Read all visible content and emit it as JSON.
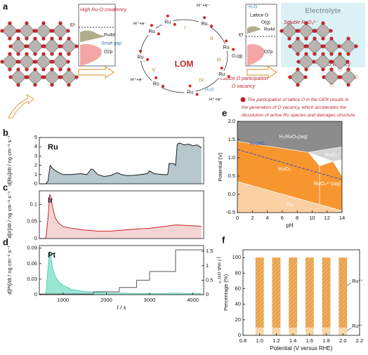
{
  "diagram": {
    "panel": "a",
    "left_dos": {
      "title": "High Ru-O covalency",
      "fermi": "Ef",
      "upper": "Ru4d",
      "gap": "Small gap",
      "lower": "O2p"
    },
    "cycle": {
      "name": "LOM",
      "steps": [
        "I",
        "II",
        "III",
        "IV",
        "V"
      ],
      "sites": [
        "Ru",
        "Ru",
        "Ru",
        "Ru",
        "Ru",
        "Ru",
        "Ru",
        "Ru"
      ],
      "protons": [
        "H⁺+e⁻",
        "H⁺+e⁻",
        "H⁺+e⁻",
        "H⁺+e⁻"
      ],
      "waters": [
        "H₂O",
        "H₂O"
      ],
      "gas": "O₂(g)",
      "lattice_o": "Lattice O participation",
      "vacancy": "O vacancy"
    },
    "right_dos": {
      "fermi": "Ef",
      "upper": "Ru4d",
      "lower": "O2p",
      "water": "H₂O",
      "lattice": "Lattice O",
      "gas": "O(g)"
    },
    "electrolyte": {
      "title": "Electrolyte",
      "soluble": "Soluble RuO₄²⁻",
      "vacancy": "O vacancy"
    },
    "caption": [
      "The participation of lattice O in the OER results in",
      "the generation of O vacancy, which accelerates the",
      "dissolution of active Ru species and damages structure"
    ]
  },
  "chart_data": [
    {
      "type": "area",
      "panel": "b",
      "label": "Ru",
      "ylabel": "d[Ru]/dt / ng cm⁻² s⁻¹",
      "color": "#a9bdc6",
      "line_color": "#1c1c1c",
      "x": [
        450,
        600,
        650,
        700,
        750,
        800,
        900,
        1000,
        1200,
        1400,
        1550,
        1650,
        1700,
        1800,
        1950,
        2100,
        2250,
        2350,
        2450,
        2600,
        2800,
        2950,
        3000,
        3100,
        3300,
        3420,
        3450,
        3550,
        3600,
        3640,
        3700,
        3800,
        3900,
        4000,
        4100,
        4200
      ],
      "values": [
        0,
        0,
        0.3,
        2.0,
        1.7,
        1.5,
        1.2,
        1.0,
        1.0,
        1.1,
        1.0,
        1.6,
        1.5,
        1.0,
        0.8,
        0.9,
        1.2,
        1.0,
        0.9,
        0.9,
        1.0,
        1.1,
        1.4,
        1.1,
        1.0,
        1.0,
        2.2,
        2.2,
        2.0,
        4.3,
        4.4,
        4.2,
        4.3,
        4.1,
        4.2,
        3.9
      ],
      "xlim": [
        450,
        4250
      ],
      "ylim": [
        0,
        5
      ],
      "yticks": [
        0,
        1,
        2,
        3,
        4,
        5
      ]
    },
    {
      "type": "area",
      "panel": "c",
      "label": "Ir",
      "ylabel": "d[Ir]/dt / ng cm⁻² s⁻¹",
      "color": "#f3cccc",
      "line_color": "#c62828",
      "x": [
        450,
        600,
        650,
        690,
        720,
        760,
        820,
        900,
        1000,
        1200,
        1500,
        1800,
        2100,
        2400,
        2700,
        3000,
        3300,
        3600,
        3900,
        4200
      ],
      "values": [
        0,
        0,
        0.06,
        0.13,
        0.12,
        0.09,
        0.06,
        0.045,
        0.035,
        0.03,
        0.025,
        0.022,
        0.022,
        0.025,
        0.028,
        0.03,
        0.035,
        0.04,
        0.038,
        0.036
      ],
      "xlim": [
        450,
        4250
      ],
      "ylim": [
        0,
        0.14
      ],
      "yticks": [
        0,
        0.05,
        0.1
      ]
    },
    {
      "type": "area",
      "panel": "d",
      "label": "Pt",
      "ylabel": "d[Pt]/dt / ng cm⁻² s⁻¹",
      "xlabel": "t / s",
      "y2label": "j / mA cm⁻²",
      "color": "#86e3cc",
      "line_color": "#5fcfb3",
      "x": [
        450,
        600,
        650,
        690,
        720,
        760,
        820,
        900,
        1000,
        1200,
        1500,
        1800,
        2100,
        2400,
        2700,
        3000,
        3300,
        3600,
        3900,
        4200
      ],
      "values": [
        0,
        0,
        0.05,
        0.085,
        0.07,
        0.05,
        0.035,
        0.025,
        0.018,
        0.01,
        0.006,
        0.004,
        0.003,
        0.003,
        0.002,
        0.002,
        0.002,
        0.003,
        0.002,
        0.002
      ],
      "current": {
        "axis": "y2",
        "color": "#555555",
        "x": [
          450,
          1700,
          2300,
          2700,
          3000,
          3600
        ],
        "values": [
          0.02,
          0.1,
          0.25,
          0.5,
          0.8,
          1.55
        ]
      },
      "xlim": [
        450,
        4250
      ],
      "xticks": [
        1000,
        2000,
        3000,
        4000
      ],
      "ylim": [
        0,
        0.095
      ],
      "yticks": [
        0,
        0.03,
        0.06,
        0.09
      ],
      "y2lim": [
        0,
        1.7
      ],
      "y2ticks": [
        0,
        0.5,
        1,
        1.5
      ]
    },
    {
      "type": "region",
      "panel": "e",
      "xlabel": "pH",
      "ylabel": "Potential (V)",
      "regions": [
        {
          "name": "H₂RuO₅(aq)",
          "color": "#8c8c8c",
          "points": [
            [
              0,
              2.0
            ],
            [
              14,
              2.0
            ],
            [
              14,
              1.3
            ],
            [
              9.5,
              1.15
            ],
            [
              0,
              1.45
            ]
          ]
        },
        {
          "name": "RuO₄⁻",
          "color": "#d4d4d4",
          "points": [
            [
              9.5,
              1.15
            ],
            [
              14,
              1.3
            ],
            [
              14,
              0.95
            ],
            [
              12.8,
              0.9
            ]
          ]
        },
        {
          "name": "RuO₂",
          "color": "#f7962f",
          "points": [
            [
              0,
              0.35
            ],
            [
              0,
              1.45
            ],
            [
              9.5,
              1.15
            ],
            [
              11,
              0.78
            ],
            [
              11,
              -0.28
            ]
          ]
        },
        {
          "name": "RuO₄²⁻(aq)",
          "color": "#f7962f",
          "points": [
            [
              11,
              -0.28
            ],
            [
              11,
              0.78
            ],
            [
              12.8,
              0.9
            ],
            [
              14,
              0.5
            ],
            [
              14,
              -0.45
            ]
          ]
        },
        {
          "name": "Ru",
          "color": "#fbd0a2",
          "points": [
            [
              0,
              -0.5
            ],
            [
              0,
              0.35
            ],
            [
              14,
              -0.45
            ],
            [
              14,
              -0.5
            ]
          ]
        }
      ],
      "water_line": {
        "label": "H₂O/O₂",
        "color": "#3f51b5",
        "points": [
          [
            0,
            1.23
          ],
          [
            14,
            0.404
          ]
        ]
      },
      "xlim": [
        0,
        14
      ],
      "xticks": [
        0,
        2,
        4,
        6,
        8,
        10,
        12,
        14
      ],
      "ylim": [
        -0.5,
        2.0
      ],
      "yticks": [
        {
          "value": -0.5,
          "label": "-0.5"
        },
        {
          "value": 0,
          "label": "0.0"
        },
        {
          "value": 0.5,
          "label": "0.5"
        },
        {
          "value": 1,
          "label": "1.0"
        },
        {
          "value": 1.5,
          "label": "1.5"
        },
        {
          "value": 2,
          "label": "2.0"
        }
      ]
    },
    {
      "type": "bar",
      "panel": "f",
      "stacked": true,
      "xlabel": "Potential (V versus RHE)",
      "ylabel": "Percentage (%)",
      "x": [
        1.0,
        1.2,
        1.4,
        1.6,
        1.8,
        2.0
      ],
      "series": [
        {
          "name": "Ru³⁺",
          "color": "#f6d3a3",
          "values": [
            10,
            10,
            10,
            10,
            10,
            10
          ]
        },
        {
          "name": "Ru⁴⁺",
          "color": "#e9a24a",
          "values": [
            90,
            90,
            90,
            90,
            90,
            90
          ]
        }
      ],
      "xlim": [
        0.8,
        2.2
      ],
      "xticks": [
        0.8,
        {
          "value": 1,
          "label": "1.0"
        },
        1.2,
        1.4,
        1.6,
        1.8,
        {
          "value": 2,
          "label": "2.0"
        },
        2.2
      ],
      "ylim": [
        0,
        110
      ],
      "yticks": [
        0,
        20,
        40,
        60,
        80,
        100
      ]
    }
  ]
}
